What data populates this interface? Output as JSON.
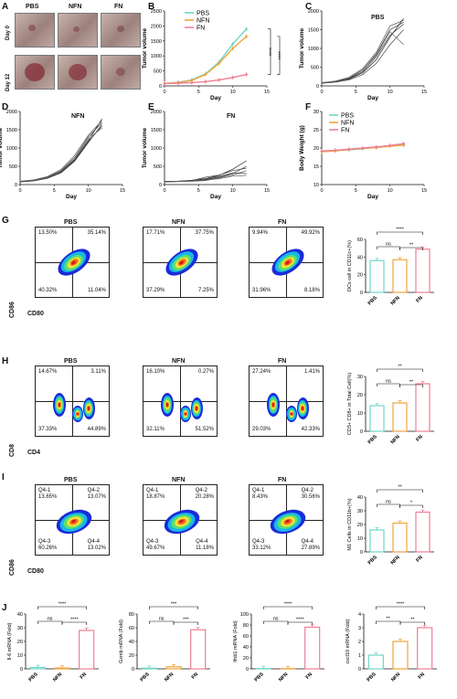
{
  "panels": {
    "A": "A",
    "B": "B",
    "C": "C",
    "D": "D",
    "E": "E",
    "F": "F",
    "G": "G",
    "H": "H",
    "I": "I",
    "J": "J"
  },
  "groups": [
    "PBS",
    "NFN",
    "FN"
  ],
  "colors": {
    "PBS": "#6fd6c8",
    "NFN": "#f0a43c",
    "FN": "#ef7f95"
  },
  "panelA": {
    "columns": [
      "PBS",
      "NFN",
      "FN"
    ],
    "rows": [
      "Day 0",
      "Day 12"
    ]
  },
  "panelC_title": "PBS",
  "panelD_title": "NFN",
  "panelE_title": "FN",
  "facs_G": {
    "xlabel": "CD80",
    "ylabel": "CD86",
    "plots": [
      {
        "title": "PBS",
        "q": [
          "13.50%",
          "35.14%",
          "40.32%",
          "11.04%"
        ]
      },
      {
        "title": "NFN",
        "q": [
          "17.71%",
          "37.75%",
          "37.29%",
          "7.25%"
        ]
      },
      {
        "title": "FN",
        "q": [
          "9.94%",
          "49.92%",
          "31.96%",
          "8.18%"
        ]
      }
    ]
  },
  "facs_H": {
    "xlabel": "CD4",
    "ylabel": "CD8",
    "plots": [
      {
        "title": "PBS",
        "q": [
          "14.67%",
          "3.11%",
          "37.33%",
          "44.89%"
        ]
      },
      {
        "title": "NFN",
        "q": [
          "16.10%",
          "0.27%",
          "32.11%",
          "51.52%"
        ]
      },
      {
        "title": "FN",
        "q": [
          "27.24%",
          "1.41%",
          "29.03%",
          "42.33%"
        ]
      }
    ]
  },
  "facs_I": {
    "xlabel": "CD80",
    "ylabel": "CD86",
    "plots": [
      {
        "title": "PBS",
        "q": [
          "Q4-1\n13.65%",
          "Q4-2\n13.07%",
          "Q4-3\n60.26%",
          "Q4-4\n13.02%"
        ]
      },
      {
        "title": "NFN",
        "q": [
          "Q4-1\n18.87%",
          "Q4-2\n20.28%",
          "Q4-3\n49.67%",
          "Q4-4\n11.18%"
        ]
      },
      {
        "title": "FN",
        "q": [
          "Q4-1\n8.43%",
          "Q4-2\n30.56%",
          "Q4-3\n33.12%",
          "Q4-4\n27.89%"
        ]
      }
    ]
  },
  "chart_data": [
    {
      "id": "B",
      "type": "line",
      "xlabel": "Day",
      "ylabel": "Tumor volume",
      "xlim": [
        0,
        15
      ],
      "ylim": [
        0,
        2500
      ],
      "xticks": [
        0,
        5,
        10,
        15
      ],
      "yticks": [
        0,
        500,
        1000,
        1500,
        2000,
        2500
      ],
      "x": [
        0,
        2,
        4,
        6,
        8,
        10,
        12
      ],
      "series": [
        {
          "name": "PBS",
          "values": [
            80,
            120,
            200,
            400,
            800,
            1400,
            1900
          ]
        },
        {
          "name": "NFN",
          "values": [
            80,
            110,
            180,
            380,
            750,
            1250,
            1650
          ]
        },
        {
          "name": "FN",
          "values": [
            80,
            90,
            110,
            140,
            200,
            280,
            380
          ]
        }
      ],
      "annotations": [
        "****",
        "****"
      ]
    },
    {
      "id": "C",
      "type": "line",
      "title": "PBS",
      "xlabel": "Day",
      "ylabel": "Tumor volume",
      "xlim": [
        0,
        15
      ],
      "ylim": [
        0,
        2000
      ],
      "xticks": [
        0,
        5,
        10,
        15
      ],
      "yticks": [
        0,
        500,
        1000,
        1500,
        2000
      ],
      "x": [
        0,
        2,
        4,
        6,
        8,
        10,
        12
      ],
      "series": [
        {
          "values": [
            80,
            120,
            180,
            350,
            700,
            1300,
            1800
          ]
        },
        {
          "values": [
            90,
            110,
            200,
            420,
            850,
            1500,
            1700
          ]
        },
        {
          "values": [
            70,
            100,
            160,
            300,
            600,
            1100,
            1500
          ]
        },
        {
          "values": [
            85,
            130,
            230,
            460,
            900,
            1600,
            1750
          ]
        },
        {
          "values": [
            75,
            115,
            190,
            380,
            780,
            1350,
            1650
          ]
        },
        {
          "values": [
            80,
            125,
            210,
            430,
            820,
            1450,
            1100
          ]
        }
      ]
    },
    {
      "id": "D",
      "type": "line",
      "title": "NFN",
      "xlabel": "Day",
      "ylabel": "Tumor volume",
      "xlim": [
        0,
        15
      ],
      "ylim": [
        0,
        2000
      ],
      "xticks": [
        0,
        5,
        10,
        15
      ],
      "yticks": [
        0,
        500,
        1000,
        1500,
        2000
      ],
      "x": [
        0,
        2,
        4,
        6,
        8,
        10,
        12
      ],
      "series": [
        {
          "values": [
            80,
            110,
            180,
            340,
            680,
            1200,
            1800
          ]
        },
        {
          "values": [
            85,
            120,
            200,
            380,
            740,
            1300,
            1700
          ]
        },
        {
          "values": [
            75,
            100,
            170,
            320,
            640,
            1150,
            1650
          ]
        },
        {
          "values": [
            90,
            130,
            220,
            410,
            800,
            1350,
            1750
          ]
        },
        {
          "values": [
            70,
            105,
            175,
            330,
            660,
            1180,
            1600
          ]
        },
        {
          "values": [
            80,
            115,
            190,
            360,
            700,
            1250,
            1550
          ]
        }
      ]
    },
    {
      "id": "E",
      "type": "line",
      "title": "FN",
      "xlabel": "Day",
      "ylabel": "Tumor volume",
      "xlim": [
        0,
        15
      ],
      "ylim": [
        0,
        2000
      ],
      "xticks": [
        0,
        5,
        10,
        15
      ],
      "yticks": [
        0,
        500,
        1000,
        1500,
        2000
      ],
      "x": [
        0,
        2,
        4,
        6,
        8,
        10,
        12
      ],
      "series": [
        {
          "values": [
            80,
            90,
            120,
            160,
            250,
            420,
            650
          ]
        },
        {
          "values": [
            70,
            85,
            100,
            130,
            200,
            300,
            500
          ]
        },
        {
          "values": [
            90,
            95,
            110,
            200,
            260,
            380,
            450
          ]
        },
        {
          "values": [
            75,
            80,
            90,
            110,
            180,
            260,
            380
          ]
        },
        {
          "values": [
            85,
            90,
            105,
            140,
            220,
            320,
            300
          ]
        },
        {
          "values": [
            80,
            88,
            100,
            120,
            160,
            230,
            250
          ]
        }
      ]
    },
    {
      "id": "F",
      "type": "line",
      "xlabel": "Day",
      "ylabel": "Body Weight (g)",
      "xlim": [
        0,
        15
      ],
      "ylim": [
        10,
        30
      ],
      "xticks": [
        0,
        5,
        10,
        15
      ],
      "yticks": [
        10,
        15,
        20,
        25,
        30
      ],
      "x": [
        0,
        2,
        4,
        6,
        8,
        10,
        12
      ],
      "series": [
        {
          "name": "PBS",
          "values": [
            19,
            19.3,
            19.5,
            19.8,
            20.2,
            20.6,
            21
          ]
        },
        {
          "name": "NFN",
          "values": [
            19,
            19.2,
            19.6,
            19.9,
            20.1,
            20.5,
            20.8
          ]
        },
        {
          "name": "FN",
          "values": [
            19.2,
            19.4,
            19.7,
            20,
            20.3,
            20.7,
            21.2
          ]
        }
      ]
    },
    {
      "id": "G-bar",
      "type": "bar",
      "ylabel": "DCs cell in CD11c+(%)",
      "categories": [
        "PBS",
        "NFN",
        "FN"
      ],
      "values": [
        36,
        37,
        49
      ],
      "ylim": [
        0,
        60
      ],
      "yticks": [
        0,
        20,
        40,
        60
      ],
      "sig": [
        "ns",
        "**",
        "****"
      ]
    },
    {
      "id": "H-bar",
      "type": "bar",
      "ylabel": "CD3+ CD8+ in Total Cell(%)",
      "categories": [
        "PBS",
        "NFN",
        "FN"
      ],
      "values": [
        14,
        15.5,
        26
      ],
      "ylim": [
        0,
        30
      ],
      "yticks": [
        0,
        10,
        20,
        30
      ],
      "sig": [
        "ns",
        "**",
        "**"
      ]
    },
    {
      "id": "I-bar",
      "type": "bar",
      "ylabel": "M1 Cells in CD11b+(%)",
      "categories": [
        "PBS",
        "NFN",
        "FN"
      ],
      "values": [
        16,
        21,
        29
      ],
      "ylim": [
        0,
        40
      ],
      "yticks": [
        0,
        10,
        20,
        30,
        40
      ],
      "sig": [
        "ns",
        "*",
        "**"
      ]
    },
    {
      "id": "J1",
      "type": "bar",
      "ylabel": "Il-6 mRNA (Fold)",
      "categories": [
        "PBS",
        "NFN",
        "FN"
      ],
      "values": [
        1,
        0.6,
        28
      ],
      "ylim": [
        0,
        40
      ],
      "yticks": [
        0,
        10,
        20,
        30,
        40
      ],
      "sig": [
        "ns",
        "****",
        "****"
      ]
    },
    {
      "id": "J2",
      "type": "bar",
      "ylabel": "Gzmb mRNA (Fold)",
      "categories": [
        "PBS",
        "NFN",
        "FN"
      ],
      "values": [
        1,
        3,
        57
      ],
      "ylim": [
        0,
        80
      ],
      "yticks": [
        0,
        20,
        40,
        60,
        80
      ],
      "sig": [
        "ns",
        "***",
        "***"
      ]
    },
    {
      "id": "J3",
      "type": "bar",
      "ylabel": "Ifnb1 mRNA (Fold)",
      "categories": [
        "PBS",
        "NFN",
        "FN"
      ],
      "values": [
        0.5,
        0.4,
        76
      ],
      "ylim": [
        0,
        100
      ],
      "yticks": [
        0,
        20,
        40,
        60,
        80,
        100
      ],
      "sig": [
        "ns",
        "****",
        "****"
      ]
    },
    {
      "id": "J4",
      "type": "bar",
      "ylabel": "cxcl10 mRNA (Fold)",
      "categories": [
        "PBS",
        "NFN",
        "FN"
      ],
      "values": [
        1,
        2,
        3
      ],
      "ylim": [
        0,
        4
      ],
      "yticks": [
        0,
        1,
        2,
        3,
        4
      ],
      "sig": [
        "**",
        "**",
        "****"
      ]
    }
  ]
}
